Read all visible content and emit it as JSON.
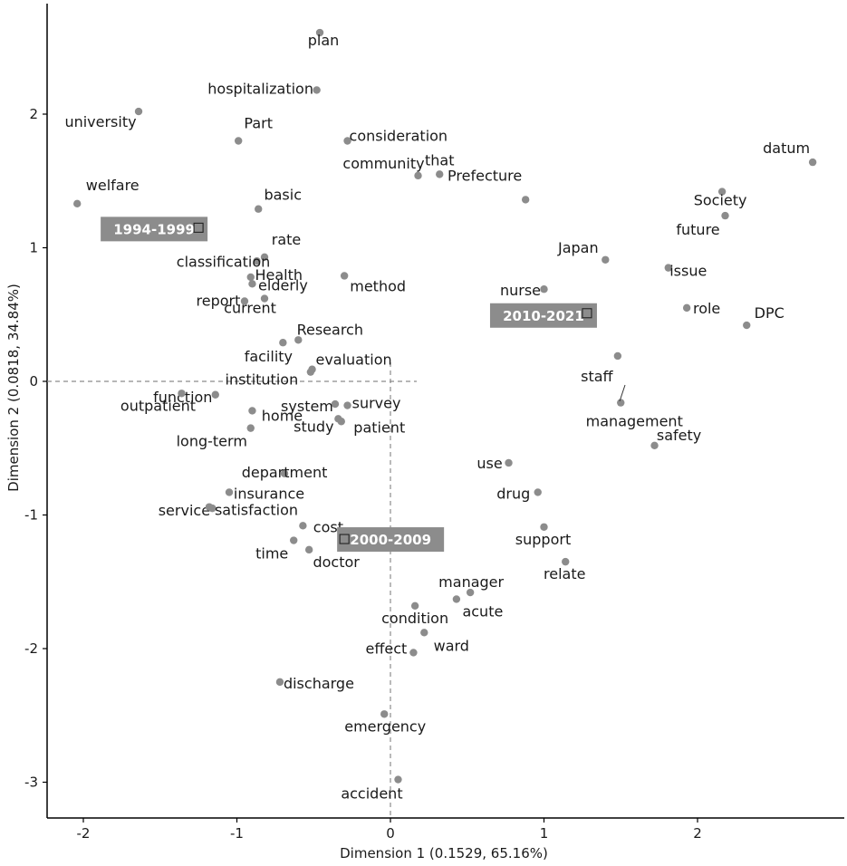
{
  "chart_data": {
    "type": "scatter",
    "title": "",
    "xlabel": "Dimension 1  (0.1529,  65.16%)",
    "ylabel": "Dimension 2  (0.0818,  34.84%)",
    "xlim": [
      -2.2,
      2.95
    ],
    "ylim": [
      -3.3,
      2.85
    ],
    "xticks": [
      -2,
      -1,
      0,
      1,
      2
    ],
    "yticks": [
      -3,
      -2,
      -1,
      0,
      1,
      2
    ],
    "grid": false,
    "reference_lines": {
      "x": 0,
      "y": 0
    },
    "colors": {
      "point": "#8c8c8c",
      "year_box": "#8c8c8c",
      "year_text": "#ffffff",
      "axis": "#000000",
      "ref_line": "#8c8c8c"
    },
    "words": [
      {
        "label": "plan",
        "x": -0.46,
        "y": 2.61
      },
      {
        "label": "hospitalization",
        "x": -0.48,
        "y": 2.18
      },
      {
        "label": "university",
        "x": -1.64,
        "y": 2.02
      },
      {
        "label": "Part",
        "x": -0.99,
        "y": 1.8
      },
      {
        "label": "consideration",
        "x": -0.28,
        "y": 1.8
      },
      {
        "label": "community",
        "x": 0.18,
        "y": 1.54
      },
      {
        "label": "that",
        "x": 0.32,
        "y": 1.55
      },
      {
        "label": "Prefecture",
        "x": 0.88,
        "y": 1.36
      },
      {
        "label": "datum",
        "x": 2.75,
        "y": 1.64
      },
      {
        "label": "Society",
        "x": 2.16,
        "y": 1.42
      },
      {
        "label": "future",
        "x": 2.18,
        "y": 1.24
      },
      {
        "label": "welfare",
        "x": -2.04,
        "y": 1.33
      },
      {
        "label": "basic",
        "x": -0.86,
        "y": 1.29
      },
      {
        "label": "rate",
        "x": -0.82,
        "y": 0.93
      },
      {
        "label": "classification",
        "x": -0.87,
        "y": 0.9
      },
      {
        "label": "Health",
        "x": -0.91,
        "y": 0.78
      },
      {
        "label": "elderly",
        "x": -0.9,
        "y": 0.73
      },
      {
        "label": "method",
        "x": -0.3,
        "y": 0.79
      },
      {
        "label": "report",
        "x": -0.95,
        "y": 0.6
      },
      {
        "label": "current",
        "x": -0.82,
        "y": 0.62
      },
      {
        "label": "Japan",
        "x": 1.4,
        "y": 0.91
      },
      {
        "label": "issue",
        "x": 1.81,
        "y": 0.85
      },
      {
        "label": "nurse",
        "x": 1.0,
        "y": 0.69
      },
      {
        "label": "role",
        "x": 1.93,
        "y": 0.55
      },
      {
        "label": "DPC",
        "x": 2.32,
        "y": 0.42
      },
      {
        "label": "Research",
        "x": -0.6,
        "y": 0.31
      },
      {
        "label": "facility",
        "x": -0.7,
        "y": 0.29
      },
      {
        "label": "evaluation",
        "x": -0.51,
        "y": 0.09
      },
      {
        "label": "institution",
        "x": -0.52,
        "y": 0.07
      },
      {
        "label": "staff",
        "x": 1.48,
        "y": 0.19
      },
      {
        "label": "function",
        "x": -1.14,
        "y": -0.1
      },
      {
        "label": "outpatient",
        "x": -1.36,
        "y": -0.09
      },
      {
        "label": "system",
        "x": -0.36,
        "y": -0.17
      },
      {
        "label": "survey",
        "x": -0.28,
        "y": -0.18
      },
      {
        "label": "home",
        "x": -0.9,
        "y": -0.22
      },
      {
        "label": "patient",
        "x": -0.32,
        "y": -0.3
      },
      {
        "label": "study",
        "x": -0.34,
        "y": -0.28
      },
      {
        "label": "long-term",
        "x": -0.91,
        "y": -0.35
      },
      {
        "label": "management",
        "x": 1.5,
        "y": -0.16
      },
      {
        "label": "safety",
        "x": 1.72,
        "y": -0.48
      },
      {
        "label": "department",
        "x": -0.69,
        "y": -0.69
      },
      {
        "label": "use",
        "x": 0.77,
        "y": -0.61
      },
      {
        "label": "insurance",
        "x": -1.05,
        "y": -0.83
      },
      {
        "label": "drug",
        "x": 0.96,
        "y": -0.83
      },
      {
        "label": "service",
        "x": -1.16,
        "y": -0.95
      },
      {
        "label": "satisfaction",
        "x": -1.18,
        "y": -0.94
      },
      {
        "label": "cost",
        "x": -0.57,
        "y": -1.08
      },
      {
        "label": "support",
        "x": 1.0,
        "y": -1.09
      },
      {
        "label": "time",
        "x": -0.63,
        "y": -1.19
      },
      {
        "label": "doctor",
        "x": -0.53,
        "y": -1.26
      },
      {
        "label": "relate",
        "x": 1.14,
        "y": -1.35
      },
      {
        "label": "manager",
        "x": 0.52,
        "y": -1.58
      },
      {
        "label": "acute",
        "x": 0.43,
        "y": -1.63
      },
      {
        "label": "condition",
        "x": 0.16,
        "y": -1.68
      },
      {
        "label": "ward",
        "x": 0.22,
        "y": -1.88
      },
      {
        "label": "effect",
        "x": 0.15,
        "y": -2.03
      },
      {
        "label": "discharge",
        "x": -0.72,
        "y": -2.25
      },
      {
        "label": "emergency",
        "x": -0.04,
        "y": -2.49
      },
      {
        "label": "accident",
        "x": 0.05,
        "y": -2.98
      }
    ],
    "years": [
      {
        "label": "1994-1999",
        "x": -1.25,
        "y": 1.15
      },
      {
        "label": "2010-2021",
        "x": 1.28,
        "y": 0.51
      },
      {
        "label": "2000-2009",
        "x": -0.3,
        "y": -1.18
      }
    ]
  }
}
